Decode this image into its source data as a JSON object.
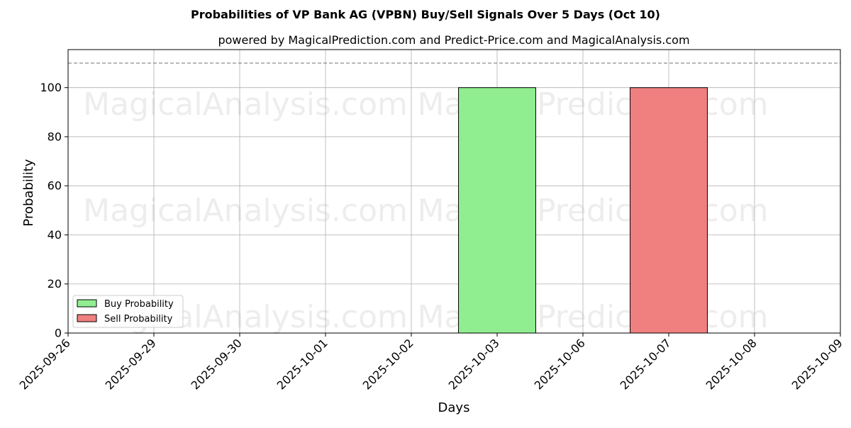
{
  "chart_data": {
    "type": "bar",
    "title": "Probabilities of VP Bank AG (VPBN) Buy/Sell Signals Over 5 Days (Oct 10)",
    "subtitle": "powered by MagicalPrediction.com and Predict-Price.com and MagicalAnalysis.com",
    "xlabel": "Days",
    "ylabel": "Probability",
    "categories": [
      "2025-09-26",
      "2025-09-29",
      "2025-09-30",
      "2025-10-01",
      "2025-10-02",
      "2025-10-03",
      "2025-10-06",
      "2025-10-07",
      "2025-10-08",
      "2025-10-09"
    ],
    "y_ticks": [
      0,
      20,
      40,
      60,
      80,
      100
    ],
    "ylim": [
      0,
      115.5
    ],
    "reference_line": 110,
    "grid": true,
    "legend_position": "lower-left",
    "series": [
      {
        "name": "Buy Probability",
        "color": "#90ee90",
        "points": [
          {
            "x": "2025-10-03",
            "y": 100
          }
        ]
      },
      {
        "name": "Sell Probability",
        "color": "#f08080",
        "points": [
          {
            "x": "2025-10-07",
            "y": 100
          }
        ]
      }
    ],
    "watermarks": [
      "MagicalAnalysis.com",
      "MagicalPrediction.com"
    ]
  }
}
